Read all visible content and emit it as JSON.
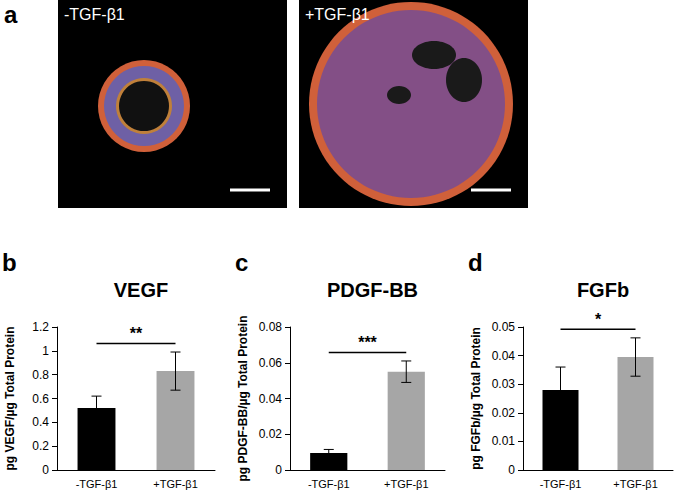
{
  "panel_a": {
    "panel": "a",
    "images": [
      {
        "label": "-TGF-β1"
      },
      {
        "label": "+TGF-β1"
      }
    ]
  },
  "chart_data": [
    {
      "panel": "b",
      "type": "bar",
      "title": "VEGF",
      "ylabel": "pg VEGF/µg Total Protein",
      "categories": [
        "-TGF-β1",
        "+TGF-β1"
      ],
      "values": [
        0.52,
        0.83
      ],
      "errors": [
        0.1,
        0.16
      ],
      "colors": [
        "#000000",
        "#a6a6a6"
      ],
      "ylim": [
        0,
        1.2
      ],
      "yticks": [
        0,
        0.2,
        0.4,
        0.6,
        0.8,
        1,
        1.2
      ],
      "significance": "**",
      "grid": false
    },
    {
      "panel": "c",
      "type": "bar",
      "title": "PDGF-BB",
      "ylabel": "pg PDGF-BB/µg Total Protein",
      "categories": [
        "-TGF-β1",
        "+TGF-β1"
      ],
      "values": [
        0.0095,
        0.055
      ],
      "errors": [
        0.002,
        0.006
      ],
      "colors": [
        "#000000",
        "#a6a6a6"
      ],
      "ylim": [
        0,
        0.08
      ],
      "yticks": [
        0,
        0.02,
        0.04,
        0.06,
        0.08
      ],
      "significance": "***",
      "grid": false
    },
    {
      "panel": "d",
      "type": "bar",
      "title": "FGFb",
      "ylabel": "pg FGFb/µg Total Protein",
      "categories": [
        "-TGF-β1",
        "+TGF-β1"
      ],
      "values": [
        0.028,
        0.0395
      ],
      "errors": [
        0.008,
        0.0067
      ],
      "colors": [
        "#000000",
        "#a6a6a6"
      ],
      "ylim": [
        0,
        0.05
      ],
      "yticks": [
        0,
        0.01,
        0.02,
        0.03,
        0.04,
        0.05
      ],
      "significance": "*",
      "grid": false
    }
  ]
}
